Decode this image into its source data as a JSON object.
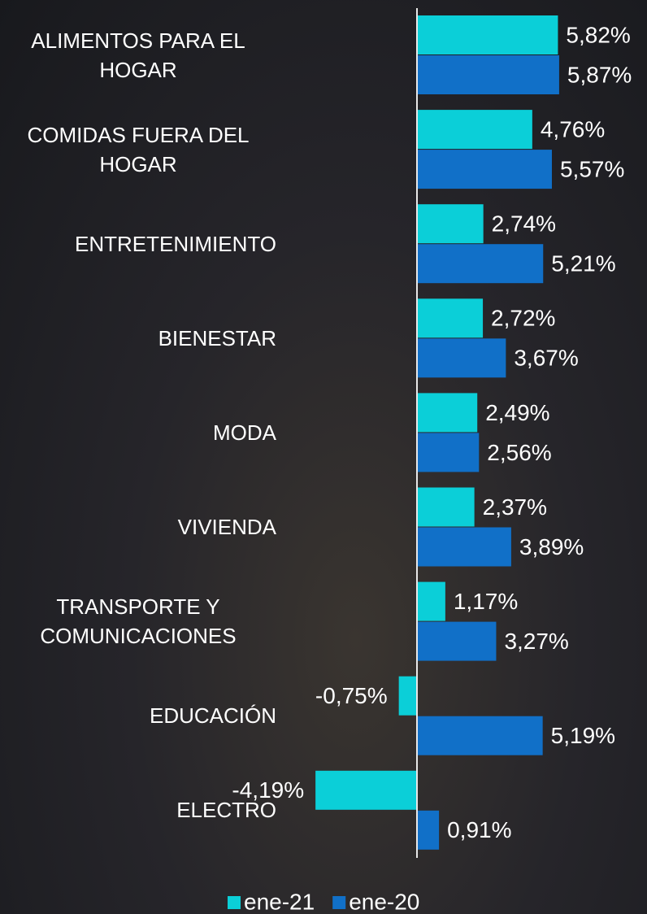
{
  "chart_data": {
    "type": "bar",
    "orientation": "horizontal",
    "categories": [
      "ALIMENTOS PARA EL HOGAR",
      "COMIDAS FUERA DEL HOGAR",
      "ENTRETENIMIENTO",
      "BIENESTAR",
      "MODA",
      "VIVIENDA",
      "TRANSPORTE Y COMUNICACIONES",
      "EDUCACIÓN",
      "ELECTRO"
    ],
    "series": [
      {
        "name": "ene-21",
        "color": "#0bcfd8",
        "values": [
          5.82,
          4.76,
          2.74,
          2.72,
          2.49,
          2.37,
          1.17,
          -0.75,
          -4.19
        ],
        "value_labels": [
          "5,82%",
          "4,76%",
          "2,74%",
          "2,72%",
          "2,49%",
          "2,37%",
          "1,17%",
          "-0,75%",
          "-4,19%"
        ]
      },
      {
        "name": "ene-20",
        "color": "#1170c8",
        "values": [
          5.87,
          5.57,
          5.21,
          3.67,
          2.56,
          3.89,
          3.27,
          5.19,
          0.91
        ],
        "value_labels": [
          "5,87%",
          "5,57%",
          "5,21%",
          "3,67%",
          "2,56%",
          "3,89%",
          "3,27%",
          "5,19%",
          "0,91%"
        ]
      }
    ],
    "legend": "bottom"
  }
}
